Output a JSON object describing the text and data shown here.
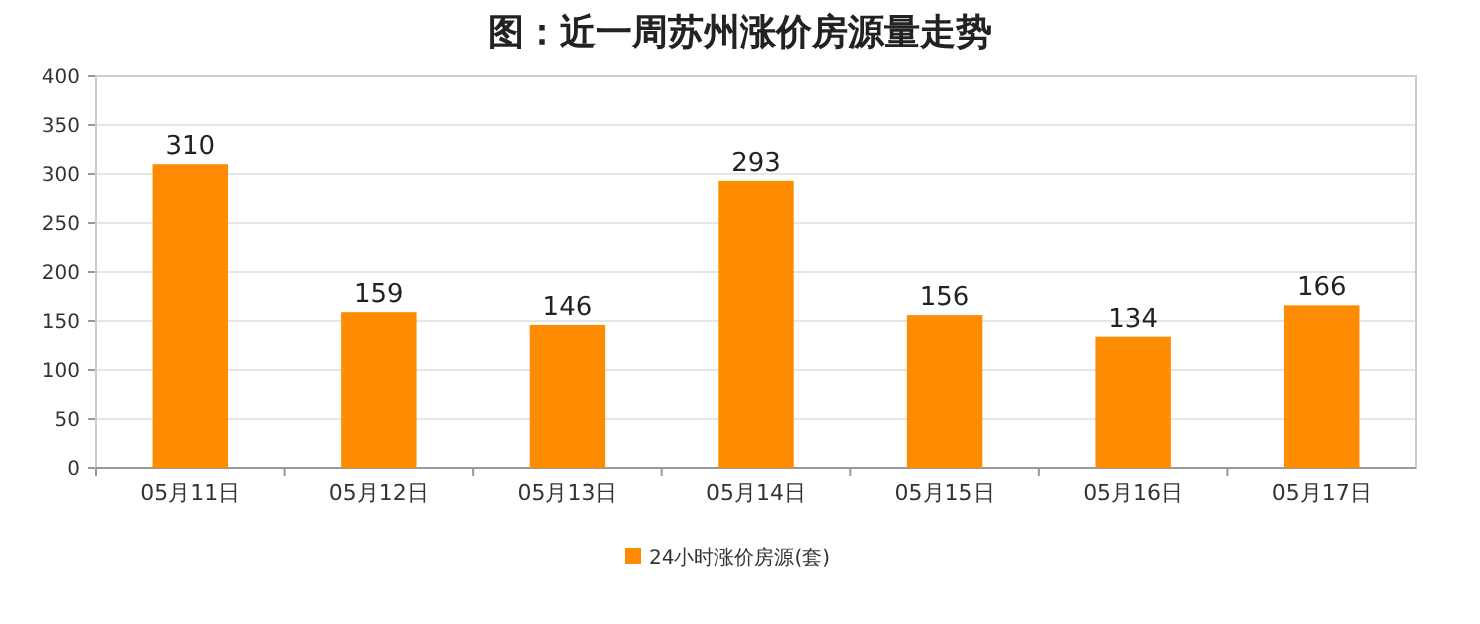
{
  "chart_data": {
    "type": "bar",
    "title": "图：近一周苏州涨价房源量走势",
    "categories": [
      "05月11日",
      "05月12日",
      "05月13日",
      "05月14日",
      "05月15日",
      "05月16日",
      "05月17日"
    ],
    "series": [
      {
        "name": "24小时涨价房源(套)",
        "color": "#ff8c00",
        "values": [
          310,
          159,
          146,
          293,
          156,
          134,
          166
        ]
      }
    ],
    "ylim": [
      0,
      400
    ],
    "yticks": [
      0,
      50,
      100,
      150,
      200,
      250,
      300,
      350,
      400
    ],
    "data_labels": true,
    "grid": "y",
    "legend": "bottom"
  }
}
